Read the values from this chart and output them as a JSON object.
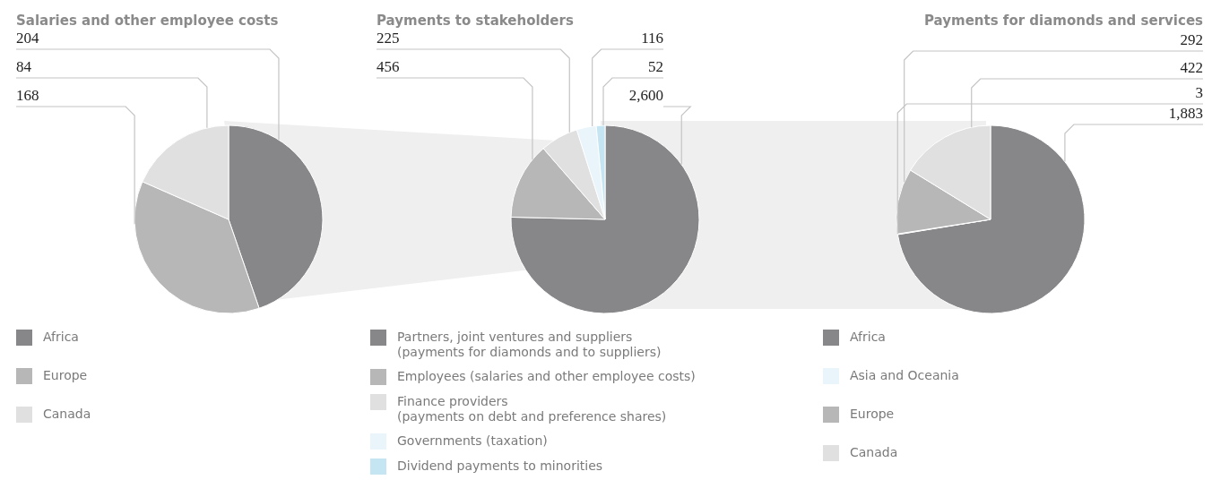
{
  "chart_data": [
    {
      "type": "pie",
      "title": "Salaries and other employee costs",
      "categories": [
        "Africa",
        "Europe",
        "Canada"
      ],
      "values": [
        204,
        168,
        84
      ],
      "colors": [
        "#878688",
        "#b8b7b8",
        "#e0e0e0"
      ],
      "data_labels": true,
      "legend": "bottom"
    },
    {
      "type": "pie",
      "title": "Payments to stakeholders",
      "categories": [
        "Partners, joint ventures and suppliers\n(payments for diamonds and to suppliers)",
        "Employees (salaries and other employee costs)",
        "Finance providers\n(payments on debt and preference shares)",
        "Governments (taxation)",
        "Dividend payments to minorities"
      ],
      "values": [
        2600,
        456,
        225,
        116,
        52
      ],
      "colors": [
        "#878688",
        "#b8b7b8",
        "#e0e0e0",
        "#e9f5fb",
        "#c6e5f3"
      ],
      "value_labels": [
        "2,600",
        "456",
        "225",
        "116",
        "52"
      ],
      "legend": "bottom"
    },
    {
      "type": "pie",
      "title": "Payments for diamonds and services",
      "categories": [
        "Africa",
        "Asia and Oceania",
        "Europe",
        "Canada"
      ],
      "values": [
        1883,
        3,
        292,
        422
      ],
      "colors": [
        "#878688",
        "#e9f5fb",
        "#b8b7b8",
        "#e0e0e0"
      ],
      "value_labels": [
        "1,883",
        "3",
        "292",
        "422"
      ],
      "legend": "bottom"
    }
  ]
}
